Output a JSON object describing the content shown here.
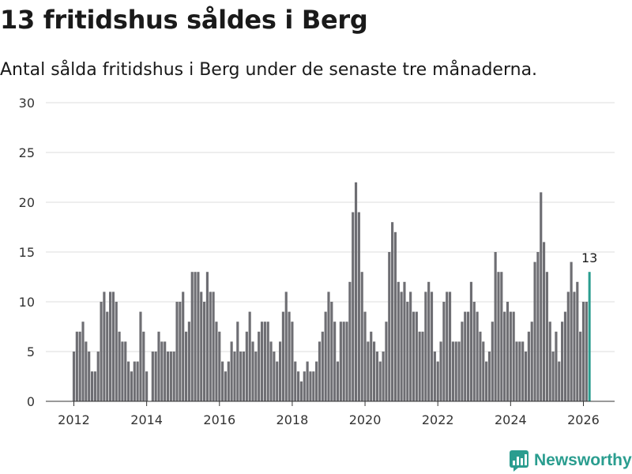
{
  "header": {
    "title": "13 fritidshus såldes i Berg",
    "subtitle": "Antal sålda fritidshus i Berg under de senaste tre månaderna."
  },
  "brand": {
    "name": "Newsworthy",
    "color": "#2a9d8f"
  },
  "chart_data": {
    "type": "bar",
    "title": "13 fritidshus såldes i Berg",
    "subtitle": "Antal sålda fritidshus i Berg under de senaste tre månaderna.",
    "xlabel": "",
    "ylabel": "",
    "ylim": [
      0,
      30
    ],
    "y_ticks": [
      0,
      5,
      10,
      15,
      20,
      25,
      30
    ],
    "x_ticks": [
      2012,
      2014,
      2016,
      2018,
      2020,
      2022,
      2024,
      2026
    ],
    "x_tick_labels": [
      "2012",
      "2014",
      "2016",
      "2018",
      "2020",
      "2022",
      "2024",
      "2026"
    ],
    "grid": true,
    "bar_color": "#6e6e73",
    "highlight_color": "#2a9d8f",
    "start": {
      "year": 2012,
      "month": 1
    },
    "values": [
      5,
      7,
      7,
      8,
      6,
      5,
      3,
      3,
      5,
      10,
      11,
      9,
      11,
      11,
      10,
      7,
      6,
      6,
      4,
      3,
      4,
      4,
      9,
      7,
      3,
      0,
      5,
      5,
      7,
      6,
      6,
      5,
      5,
      5,
      10,
      10,
      11,
      7,
      8,
      13,
      13,
      13,
      11,
      10,
      13,
      11,
      11,
      8,
      7,
      4,
      3,
      4,
      6,
      5,
      8,
      5,
      5,
      7,
      9,
      6,
      5,
      7,
      8,
      8,
      8,
      6,
      5,
      4,
      6,
      9,
      11,
      9,
      8,
      4,
      3,
      2,
      3,
      4,
      3,
      3,
      4,
      6,
      7,
      9,
      11,
      10,
      8,
      4,
      8,
      8,
      8,
      12,
      19,
      22,
      19,
      13,
      9,
      6,
      7,
      6,
      5,
      4,
      5,
      8,
      15,
      18,
      17,
      12,
      11,
      12,
      10,
      11,
      9,
      9,
      7,
      7,
      11,
      12,
      11,
      5,
      4,
      6,
      10,
      11,
      11,
      6,
      6,
      6,
      8,
      9,
      9,
      12,
      10,
      9,
      7,
      6,
      4,
      5,
      8,
      15,
      13,
      13,
      9,
      10,
      9,
      9,
      6,
      6,
      6,
      5,
      7,
      8,
      14,
      15,
      21,
      16,
      13,
      8,
      5,
      7,
      4,
      8,
      9,
      11,
      14,
      11,
      12,
      7,
      10,
      10,
      13
    ],
    "highlight": {
      "value": 13,
      "label": "13"
    }
  }
}
